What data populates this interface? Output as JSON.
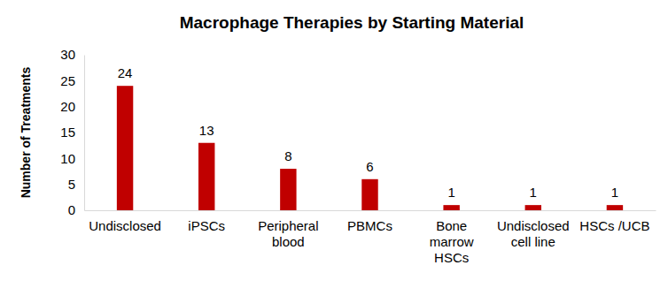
{
  "chart_data": {
    "type": "bar",
    "title": "Macrophage Therapies by Starting Material",
    "y_label": "Number of Treatments",
    "categories": [
      "Undisclosed",
      "iPSCs",
      "Peripheral blood",
      "PBMCs",
      "Bone marrow HSCs",
      "Undisclosed cell line",
      "HSCs /UCB"
    ],
    "values": [
      24,
      13,
      8,
      6,
      1,
      1,
      1
    ],
    "color": "#c00000",
    "ylim": [
      0,
      30
    ],
    "yticks": [
      0,
      5,
      10,
      15,
      20,
      25,
      30
    ],
    "grid": false,
    "data_labels": true
  }
}
